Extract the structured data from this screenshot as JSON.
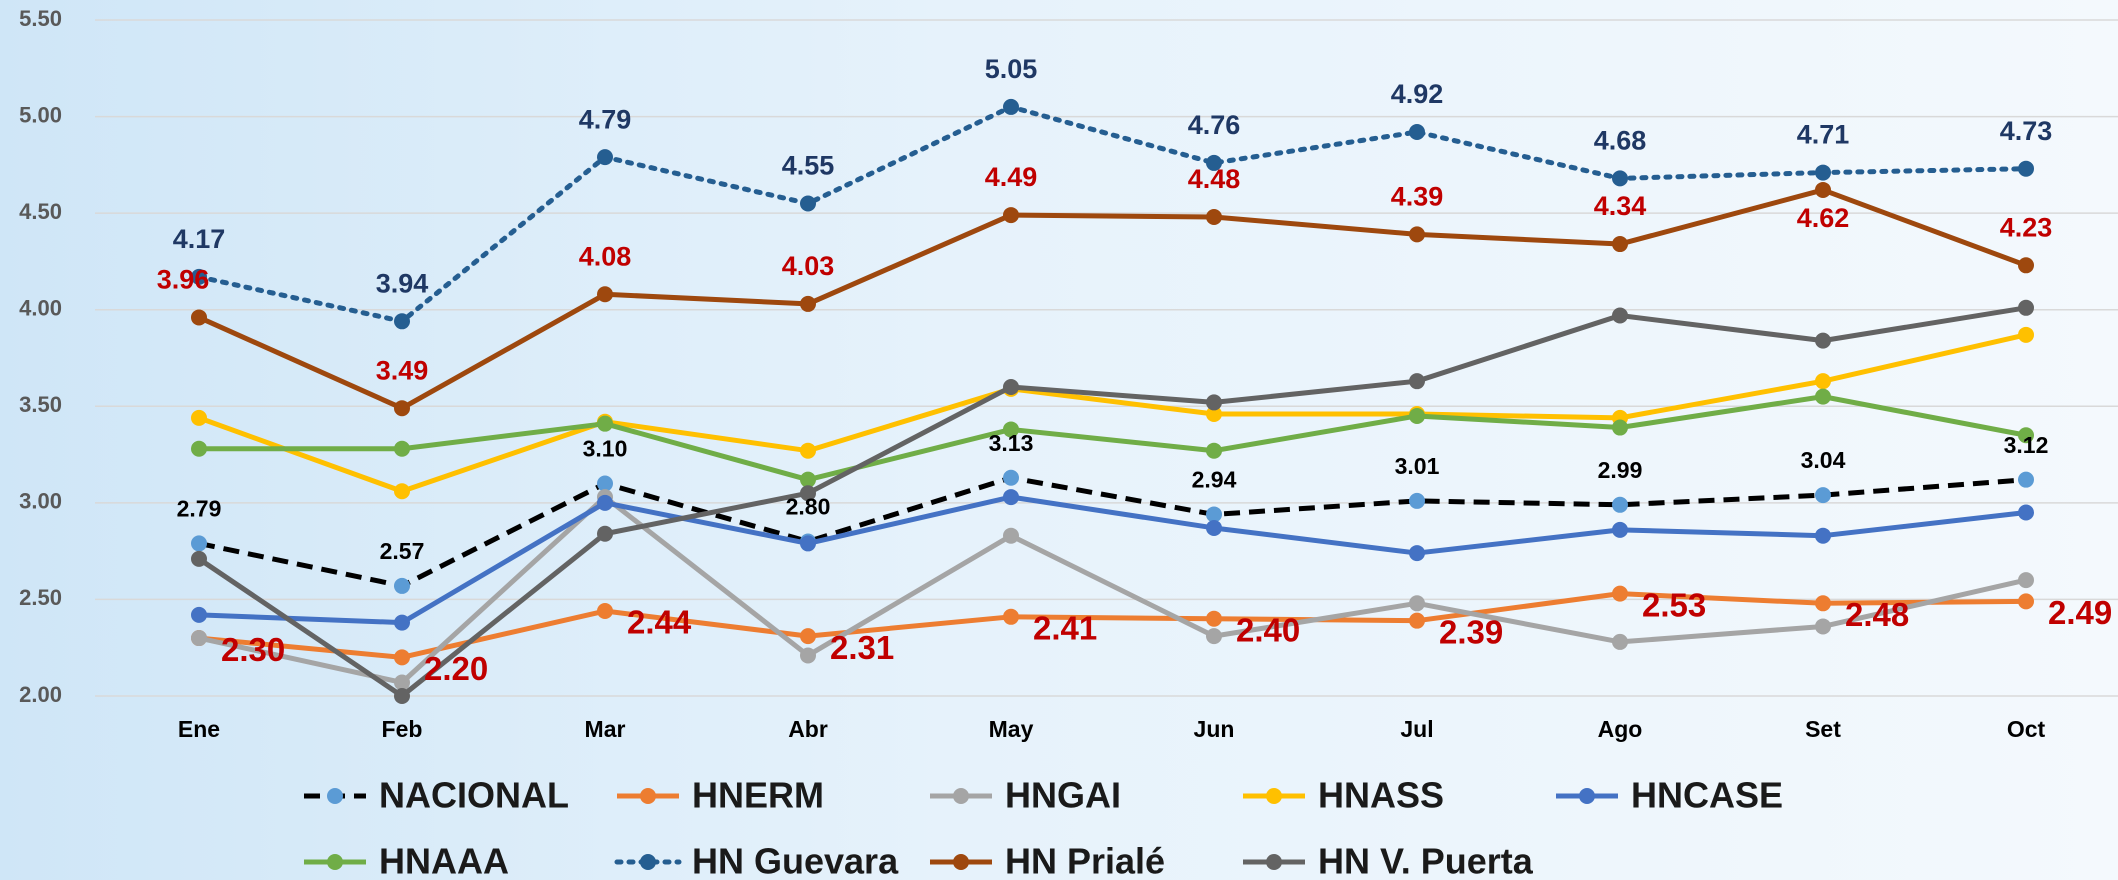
{
  "chart_data": {
    "type": "line",
    "categories": [
      "Ene",
      "Feb",
      "Mar",
      "Abr",
      "May",
      "Jun",
      "Jul",
      "Ago",
      "Set",
      "Oct"
    ],
    "ylim": [
      2.0,
      5.5
    ],
    "yticks": [
      {
        "value": 2.0,
        "label": "2.00"
      },
      {
        "value": 2.5,
        "label": "2.50"
      },
      {
        "value": 3.0,
        "label": "3.00"
      },
      {
        "value": 3.5,
        "label": "3.50"
      },
      {
        "value": 4.0,
        "label": "4.00"
      },
      {
        "value": 4.5,
        "label": "4.50"
      },
      {
        "value": 5.0,
        "label": "5.00"
      },
      {
        "value": 5.5,
        "label": "5.50"
      }
    ],
    "grid": true,
    "legend": "bottom",
    "series": [
      {
        "name": "NACIONAL",
        "color": "#000000",
        "marker_color": "#5b9bd5",
        "line_style": "dashed",
        "values": [
          2.79,
          2.57,
          3.1,
          2.8,
          3.13,
          2.94,
          3.01,
          2.99,
          3.04,
          3.12
        ],
        "value_labels": [
          "2.79",
          "2.57",
          "3.10",
          "2.80",
          "3.13",
          "2.94",
          "3.01",
          "2.99",
          "3.04",
          "3.12"
        ]
      },
      {
        "name": "HNERM",
        "color": "#ed7d31",
        "marker_color": "#ed7d31",
        "line_style": "solid",
        "values": [
          2.3,
          2.2,
          2.44,
          2.31,
          2.41,
          2.4,
          2.39,
          2.53,
          2.48,
          2.49
        ],
        "value_labels": [
          "2.30",
          "2.20",
          "2.44",
          "2.31",
          "2.41",
          "2.40",
          "2.39",
          "2.53",
          "2.48",
          "2.49"
        ]
      },
      {
        "name": "HNGAI",
        "color": "#a5a5a5",
        "marker_color": "#a5a5a5",
        "line_style": "solid",
        "values": [
          2.3,
          2.07,
          3.03,
          2.21,
          2.83,
          2.31,
          2.48,
          2.28,
          2.36,
          2.6
        ]
      },
      {
        "name": "HNASS",
        "color": "#ffc000",
        "marker_color": "#ffc000",
        "line_style": "solid",
        "values": [
          3.44,
          3.06,
          3.42,
          3.27,
          3.59,
          3.46,
          3.46,
          3.44,
          3.63,
          3.87
        ]
      },
      {
        "name": "HNCASE",
        "color": "#4472c4",
        "marker_color": "#4472c4",
        "line_style": "solid",
        "values": [
          2.42,
          2.38,
          3.0,
          2.79,
          3.03,
          2.87,
          2.74,
          2.86,
          2.83,
          2.95
        ]
      },
      {
        "name": "HNAAA",
        "color": "#70ad47",
        "marker_color": "#70ad47",
        "line_style": "solid",
        "values": [
          3.28,
          3.28,
          3.41,
          3.12,
          3.38,
          3.27,
          3.45,
          3.39,
          3.55,
          3.35
        ]
      },
      {
        "name": "HN Guevara",
        "color": "#255e91",
        "marker_color": "#255e91",
        "line_style": "dotted",
        "values": [
          4.17,
          3.94,
          4.79,
          4.55,
          5.05,
          4.76,
          4.92,
          4.68,
          4.71,
          4.73
        ],
        "value_labels": [
          "4.17",
          "3.94",
          "4.79",
          "4.55",
          "5.05",
          "4.76",
          "4.92",
          "4.68",
          "4.71",
          "4.73"
        ]
      },
      {
        "name": "HN Prialé",
        "color": "#9e480e",
        "marker_color": "#9e480e",
        "line_style": "solid",
        "values": [
          3.96,
          3.49,
          4.08,
          4.03,
          4.49,
          4.48,
          4.39,
          4.34,
          4.62,
          4.23
        ],
        "value_labels": [
          "3.96",
          "3.49",
          "4.08",
          "4.03",
          "4.49",
          "4.48",
          "4.39",
          "4.34",
          "4.62",
          "4.23"
        ]
      },
      {
        "name": "HN V. Puerta",
        "color": "#636363",
        "marker_color": "#636363",
        "line_style": "solid",
        "values": [
          2.71,
          2.0,
          2.84,
          3.05,
          3.6,
          3.52,
          3.63,
          3.97,
          3.84,
          4.01
        ]
      }
    ]
  }
}
